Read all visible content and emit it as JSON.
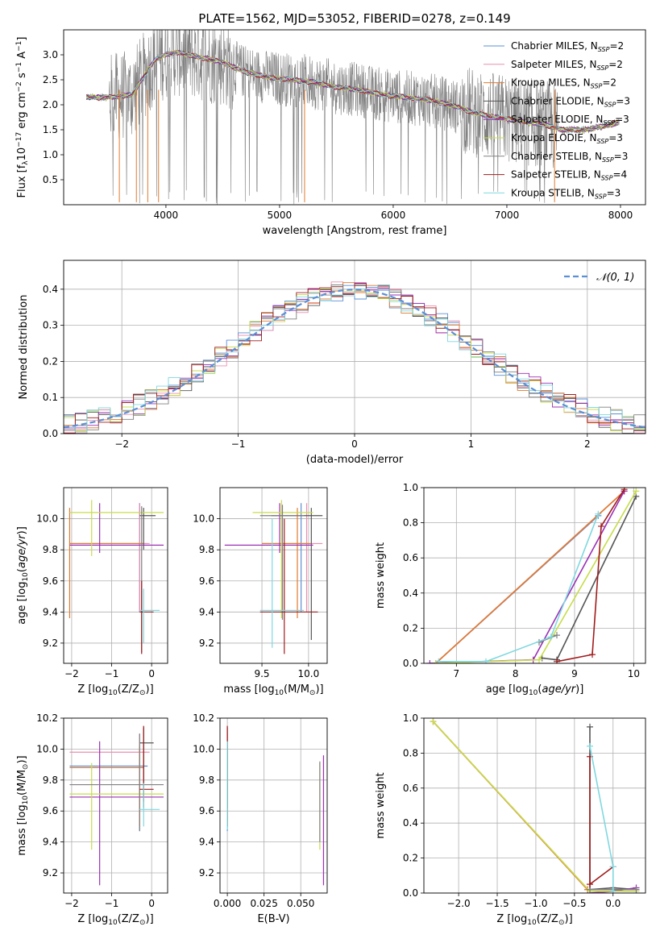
{
  "figure_title": "PLATE=1562, MJD=53052, FIBERID=0278, z=0.149",
  "models": [
    {
      "name": "Chabrier MILES",
      "nssp": "2",
      "color": "#5b8fd6"
    },
    {
      "name": "Salpeter MILES",
      "nssp": "2",
      "color": "#ea8fb0"
    },
    {
      "name": "Kroupa MILES",
      "nssp": "2",
      "color": "#e07a2f"
    },
    {
      "name": "Chabrier ELODIE",
      "nssp": "3",
      "color": "#555555"
    },
    {
      "name": "Salpeter ELODIE",
      "nssp": "3",
      "color": "#9b30b6"
    },
    {
      "name": "Kroupa ELODIE",
      "nssp": "3",
      "color": "#c8dc4a"
    },
    {
      "name": "Chabrier STELIB",
      "nssp": "3",
      "color": "#808080"
    },
    {
      "name": "Salpeter STELIB",
      "nssp": "4",
      "color": "#a01c1c"
    },
    {
      "name": "Kroupa STELIB",
      "nssp": "3",
      "color": "#7fd8e0"
    }
  ],
  "chart_data": [
    {
      "type": "line",
      "title": "PLATE=1562, MJD=53052, FIBERID=0278, z=0.149",
      "xlabel": "wavelength [Angstrom, rest frame]",
      "ylabel_parts": [
        "Flux [f",
        "λ",
        "10",
        "−17",
        " erg cm",
        "−2",
        " s",
        "−1",
        " A",
        "−1",
        "]"
      ],
      "xlim": [
        3100,
        8220
      ],
      "ylim": [
        0.0,
        3.5
      ],
      "xticks": [
        "4000",
        "5000",
        "6000",
        "7000",
        "8000"
      ],
      "yticks": [
        "0.5",
        "1.0",
        "1.5",
        "2.0",
        "2.5",
        "3.0"
      ],
      "xtick_values": [
        4000,
        5000,
        6000,
        7000,
        8000
      ],
      "ytick_values": [
        0.5,
        1.0,
        1.5,
        2.0,
        2.5,
        3.0
      ],
      "legend_position": "top-right",
      "continuum_x": [
        3300,
        3500,
        3700,
        3900,
        4000,
        4100,
        4300,
        4500,
        4700,
        4900,
        5100,
        5300,
        5500,
        5700,
        5900,
        6100,
        6300,
        6500,
        6700,
        6900,
        7100,
        7300,
        7500,
        7700,
        7900,
        7990
      ],
      "continuum_y": [
        2.15,
        2.15,
        2.2,
        2.9,
        3.0,
        3.05,
        2.95,
        2.85,
        2.65,
        2.55,
        2.5,
        2.45,
        2.35,
        2.3,
        2.2,
        2.15,
        2.1,
        2.0,
        1.85,
        1.75,
        1.68,
        1.62,
        1.5,
        1.5,
        1.6,
        1.65
      ]
    },
    {
      "type": "histogram",
      "xlabel": "(data-model)/error",
      "ylabel": "Normed distribution",
      "xlim": [
        -2.5,
        2.5
      ],
      "ylim": [
        0.0,
        0.48
      ],
      "xticks": [
        "−2",
        "−1",
        "0",
        "1",
        "2"
      ],
      "yticks": [
        "0.0",
        "0.1",
        "0.2",
        "0.3",
        "0.4"
      ],
      "xtick_values": [
        -2,
        -1,
        0,
        1,
        2
      ],
      "ytick_values": [
        0.0,
        0.1,
        0.2,
        0.3,
        0.4
      ],
      "bin_edges_range": [
        -2.6,
        2.6
      ],
      "bin_count": 52,
      "reference": {
        "label": "𝒩(0, 1)",
        "mean": 0,
        "sigma": 1,
        "color": "#5b8fd6"
      },
      "legend_position": "top-right"
    },
    {
      "type": "errorbar",
      "xlabel_parts": [
        "Z [log",
        "10",
        "(Z/Z",
        "⊙",
        ")]"
      ],
      "ylabel_parts": [
        "age  [log",
        "10",
        "(",
        "age/yr",
        ")]"
      ],
      "xlim": [
        -2.2,
        0.4
      ],
      "ylim": [
        9.07,
        10.2
      ],
      "xticks": [
        "−2",
        "−1",
        "0"
      ],
      "yticks": [
        "9.2",
        "9.4",
        "9.6",
        "9.8",
        "10.0"
      ],
      "xtick_values": [
        -2,
        -1,
        0
      ],
      "ytick_values": [
        9.2,
        9.4,
        9.6,
        9.8,
        10.0
      ],
      "points": [
        {
          "model": 0,
          "x": -0.3,
          "xlo": -2.05,
          "xhi": -0.1,
          "y": 9.84,
          "ylo": 9.4,
          "yhi": 10.1
        },
        {
          "model": 1,
          "x": -0.3,
          "xlo": -2.05,
          "xhi": -0.05,
          "y": 9.84,
          "ylo": 9.4,
          "yhi": 10.1
        },
        {
          "model": 2,
          "x": -2.05,
          "xlo": -2.05,
          "xhi": -0.2,
          "y": 9.84,
          "ylo": 9.36,
          "yhi": 10.07
        },
        {
          "model": 3,
          "x": -0.2,
          "xlo": -0.3,
          "xhi": 0.1,
          "y": 10.02,
          "ylo": 9.8,
          "yhi": 10.07
        },
        {
          "model": 4,
          "x": -1.3,
          "xlo": -2.05,
          "xhi": 0.3,
          "y": 9.83,
          "ylo": 9.78,
          "yhi": 10.1
        },
        {
          "model": 5,
          "x": -1.5,
          "xlo": -2.05,
          "xhi": 0.3,
          "y": 10.04,
          "ylo": 9.76,
          "yhi": 10.12
        },
        {
          "model": 6,
          "x": -0.25,
          "xlo": -0.3,
          "xhi": -0.2,
          "y": 9.4,
          "ylo": 9.14,
          "yhi": 10.08
        },
        {
          "model": 7,
          "x": -0.25,
          "xlo": -0.3,
          "xhi": 0.05,
          "y": 9.4,
          "ylo": 9.13,
          "yhi": 9.6
        },
        {
          "model": 8,
          "x": -0.2,
          "xlo": -0.3,
          "xhi": 0.2,
          "y": 9.41,
          "ylo": 9.2,
          "yhi": 9.55
        }
      ]
    },
    {
      "type": "errorbar",
      "xlabel_parts": [
        "mass [log",
        "10",
        "(M/M",
        "⊙",
        ")]"
      ],
      "xlim": [
        9.05,
        10.2
      ],
      "ylim": [
        9.07,
        10.2
      ],
      "xticks": [
        "9.5",
        "10.0"
      ],
      "yticks": [
        "9.2",
        "9.4",
        "9.6",
        "9.8",
        "10.0"
      ],
      "xtick_values": [
        9.5,
        10.0
      ],
      "ytick_values": [
        9.2,
        9.4,
        9.6,
        9.8,
        10.0
      ],
      "points": [
        {
          "model": 0,
          "x": 9.92,
          "xlo": 9.5,
          "xhi": 10.0,
          "y": 9.84,
          "ylo": 9.4,
          "yhi": 10.1
        },
        {
          "model": 1,
          "x": 9.98,
          "xlo": 9.5,
          "xhi": 10.15,
          "y": 9.84,
          "ylo": 9.4,
          "yhi": 10.1
        },
        {
          "model": 2,
          "x": 9.88,
          "xlo": 9.5,
          "xhi": 10.02,
          "y": 9.84,
          "ylo": 9.36,
          "yhi": 10.07
        },
        {
          "model": 3,
          "x": 10.03,
          "xlo": 9.6,
          "xhi": 10.15,
          "y": 10.02,
          "ylo": 9.22,
          "yhi": 10.07
        },
        {
          "model": 4,
          "x": 9.69,
          "xlo": 9.1,
          "xhi": 10.05,
          "y": 9.83,
          "ylo": 9.78,
          "yhi": 10.1
        },
        {
          "model": 5,
          "x": 9.71,
          "xlo": 9.4,
          "xhi": 10.05,
          "y": 10.04,
          "ylo": 9.36,
          "yhi": 10.12
        },
        {
          "model": 6,
          "x": 9.72,
          "xlo": 9.48,
          "xhi": 9.95,
          "y": 10.02,
          "ylo": 9.35,
          "yhi": 10.09
        },
        {
          "model": 7,
          "x": 9.74,
          "xlo": 9.48,
          "xhi": 10.1,
          "y": 9.4,
          "ylo": 9.13,
          "yhi": 10.0
        },
        {
          "model": 8,
          "x": 9.61,
          "xlo": 9.48,
          "xhi": 9.95,
          "y": 9.41,
          "ylo": 9.17,
          "yhi": 10.0
        }
      ]
    },
    {
      "type": "line",
      "xlabel_parts": [
        "age  [log",
        "10",
        "(",
        "age/yr",
        ")]"
      ],
      "ylabel": "mass weight",
      "xlim": [
        6.45,
        10.2
      ],
      "ylim": [
        0.0,
        1.0
      ],
      "xticks": [
        "7",
        "8",
        "9",
        "10"
      ],
      "yticks": [
        "0.0",
        "0.2",
        "0.4",
        "0.6",
        "0.8",
        "1.0"
      ],
      "xtick_values": [
        7,
        8,
        9,
        10
      ],
      "ytick_values": [
        0.0,
        0.2,
        0.4,
        0.6,
        0.8,
        1.0
      ],
      "series": [
        {
          "model": 0,
          "x": [
            6.65,
            9.4
          ],
          "y": [
            0.0,
            0.84
          ]
        },
        {
          "model": 1,
          "x": [
            6.65,
            9.84
          ],
          "y": [
            0.0,
            0.98
          ]
        },
        {
          "model": 2,
          "x": [
            6.65,
            9.84
          ],
          "y": [
            0.0,
            0.98
          ]
        },
        {
          "model": 3,
          "x": [
            8.45,
            8.7,
            10.04
          ],
          "y": [
            0.03,
            0.02,
            0.95
          ]
        },
        {
          "model": 4,
          "x": [
            6.55,
            8.3,
            9.84
          ],
          "y": [
            0.0,
            0.02,
            0.98
          ]
        },
        {
          "model": 5,
          "x": [
            6.65,
            8.4,
            10.04
          ],
          "y": [
            0.0,
            0.02,
            0.98
          ]
        },
        {
          "model": 6,
          "x": [
            8.4,
            8.7
          ],
          "y": [
            0.12,
            0.16
          ]
        },
        {
          "model": 7,
          "x": [
            8.7,
            9.3,
            9.45,
            9.84
          ],
          "y": [
            0.01,
            0.05,
            0.78,
            0.99
          ]
        },
        {
          "model": 8,
          "x": [
            6.7,
            7.5,
            8.6,
            9.4
          ],
          "y": [
            0.01,
            0.01,
            0.15,
            0.85
          ]
        }
      ]
    },
    {
      "type": "errorbar",
      "xlabel_parts": [
        "Z [log",
        "10",
        "(Z/Z",
        "⊙",
        ")]"
      ],
      "ylabel_parts": [
        "mass [log",
        "10",
        "(M/M",
        "⊙",
        ")]"
      ],
      "xlim": [
        -2.2,
        0.4
      ],
      "ylim": [
        9.07,
        10.2
      ],
      "xticks": [
        "−2",
        "−1",
        "0"
      ],
      "yticks": [
        "9.2",
        "9.4",
        "9.6",
        "9.8",
        "10.0",
        "10.2"
      ],
      "xtick_values": [
        -2,
        -1,
        0
      ],
      "ytick_values": [
        9.2,
        9.4,
        9.6,
        9.8,
        10.0,
        10.2
      ],
      "points": [
        {
          "model": 0,
          "x": -0.3,
          "xlo": -2.05,
          "xhi": -0.1,
          "y": 9.89,
          "ylo": 9.47,
          "yhi": 10.0
        },
        {
          "model": 1,
          "x": -0.3,
          "xlo": -2.05,
          "xhi": -0.05,
          "y": 9.98,
          "ylo": 9.54,
          "yhi": 10.1
        },
        {
          "model": 2,
          "x": -0.3,
          "xlo": -2.05,
          "xhi": -0.2,
          "y": 9.88,
          "ylo": 9.5,
          "yhi": 10.02
        },
        {
          "model": 3,
          "x": -0.2,
          "xlo": -0.3,
          "xhi": 0.05,
          "y": 10.04,
          "ylo": 9.62,
          "yhi": 10.14
        },
        {
          "model": 4,
          "x": -1.3,
          "xlo": -2.05,
          "xhi": 0.3,
          "y": 9.69,
          "ylo": 9.12,
          "yhi": 10.05
        },
        {
          "model": 5,
          "x": -1.5,
          "xlo": -2.05,
          "xhi": 0.3,
          "y": 9.71,
          "ylo": 9.35,
          "yhi": 9.91
        },
        {
          "model": 6,
          "x": -0.3,
          "xlo": -2.05,
          "xhi": 0.3,
          "y": 9.77,
          "ylo": 9.47,
          "yhi": 10.1
        },
        {
          "model": 7,
          "x": -0.2,
          "xlo": -0.3,
          "xhi": 0.05,
          "y": 9.74,
          "ylo": 9.66,
          "yhi": 10.15
        },
        {
          "model": 8,
          "x": -0.2,
          "xlo": -0.3,
          "xhi": 0.2,
          "y": 9.61,
          "ylo": 9.5,
          "yhi": 9.78
        }
      ]
    },
    {
      "type": "errorbar",
      "xlabel": "E(B-V)",
      "xlim": [
        -0.005,
        0.068
      ],
      "ylim": [
        9.07,
        10.2
      ],
      "xticks": [
        "0.000",
        "0.025",
        "0.050"
      ],
      "yticks": [
        "9.2",
        "9.4",
        "9.6",
        "9.8",
        "10.0",
        "10.2"
      ],
      "xtick_values": [
        0.0,
        0.025,
        0.05
      ],
      "ytick_values": [
        9.2,
        9.4,
        9.6,
        9.8,
        10.0,
        10.2
      ],
      "points": [
        {
          "model": 0,
          "x": 0.0,
          "y": 9.89,
          "ylo": 9.47,
          "yhi": 10.0
        },
        {
          "model": 1,
          "x": 0.0,
          "y": 9.98,
          "ylo": 9.54,
          "yhi": 10.1
        },
        {
          "model": 2,
          "x": 0.0,
          "y": 9.88,
          "ylo": 9.5,
          "yhi": 10.02
        },
        {
          "model": 3,
          "x": 0.0,
          "y": 10.04,
          "ylo": 9.62,
          "yhi": 10.14
        },
        {
          "model": 4,
          "x": 0.0655,
          "y": 9.69,
          "ylo": 9.12,
          "yhi": 9.96
        },
        {
          "model": 5,
          "x": 0.063,
          "y": 9.71,
          "ylo": 9.35,
          "yhi": 9.91
        },
        {
          "model": 6,
          "x": 0.063,
          "y": 9.77,
          "ylo": 9.4,
          "yhi": 9.92
        },
        {
          "model": 7,
          "x": 0.0,
          "y": 9.74,
          "ylo": 9.5,
          "yhi": 10.15
        },
        {
          "model": 8,
          "x": 0.0,
          "y": 9.61,
          "ylo": 9.48,
          "yhi": 10.05
        }
      ]
    },
    {
      "type": "line",
      "xlabel_parts": [
        "Z [log",
        "10",
        "(Z/Z",
        "⊙",
        ")]"
      ],
      "ylabel": "mass weight",
      "xlim": [
        -2.45,
        0.42
      ],
      "ylim": [
        0.0,
        1.0
      ],
      "xticks": [
        "−2.0",
        "−1.5",
        "−1.0",
        "−0.5",
        "0.0"
      ],
      "yticks": [
        "0.0",
        "0.2",
        "0.4",
        "0.6",
        "0.8",
        "1.0"
      ],
      "xtick_values": [
        -2.0,
        -1.5,
        -1.0,
        -0.5,
        0.0
      ],
      "ytick_values": [
        0.0,
        0.2,
        0.4,
        0.6,
        0.8,
        1.0
      ],
      "series": [
        {
          "model": 0,
          "x": [
            -2.33,
            -0.33
          ],
          "y": [
            0.98,
            0.02
          ]
        },
        {
          "model": 1,
          "x": [
            -2.33,
            -0.33
          ],
          "y": [
            0.98,
            0.02
          ]
        },
        {
          "model": 2,
          "x": [
            -2.33,
            -0.33
          ],
          "y": [
            0.98,
            0.02
          ]
        },
        {
          "model": 3,
          "x": [
            -0.3,
            -0.3,
            0.0,
            0.3
          ],
          "y": [
            0.95,
            0.02,
            0.03,
            0.02
          ]
        },
        {
          "model": 4,
          "x": [
            -0.3,
            0.0,
            0.3
          ],
          "y": [
            0.0,
            0.01,
            0.03
          ]
        },
        {
          "model": 5,
          "x": [
            -2.33,
            -0.3,
            0.3
          ],
          "y": [
            0.98,
            0.01,
            0.01
          ]
        },
        {
          "model": 6,
          "x": [
            -0.3,
            0.0,
            0.3
          ],
          "y": [
            0.02,
            0.02,
            0.02
          ]
        },
        {
          "model": 7,
          "x": [
            -0.3,
            -0.3,
            0.0
          ],
          "y": [
            0.78,
            0.05,
            0.15
          ]
        },
        {
          "model": 8,
          "x": [
            -0.3,
            0.0,
            0.0
          ],
          "y": [
            0.84,
            0.15,
            0.01
          ]
        }
      ]
    }
  ]
}
